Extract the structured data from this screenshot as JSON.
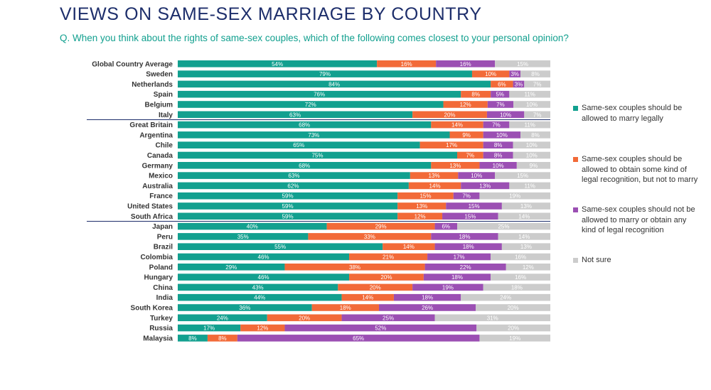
{
  "title": "VIEWS ON SAME-SEX MARRIAGE BY COUNTRY",
  "question": "Q. When you think about the rights of same-sex couples, which of the following comes closest to your personal opinion?",
  "colors": {
    "marry": "#12a08f",
    "recognition": "#f26a38",
    "no_recognition": "#9b4fb3",
    "not_sure": "#cccccc",
    "divider": "#1d2e6b"
  },
  "legend": [
    {
      "label": "Same-sex couples should be allowed to marry legally",
      "color": "#12a08f"
    },
    {
      "label": "Same-sex couples should be allowed to obtain some kind of legal recognition, but not to marry",
      "color": "#f26a38"
    },
    {
      "label": "Same-sex couples should not be allowed to marry or obtain any kind of legal recognition",
      "color": "#9b4fb3"
    },
    {
      "label": "Not sure",
      "color": "#cccccc"
    }
  ],
  "chart_data": {
    "type": "bar",
    "orientation": "horizontal",
    "stacked": true,
    "unit": "%",
    "xlim": [
      0,
      100
    ],
    "categories": [
      "Global Country Average",
      "Sweden",
      "Netherlands",
      "Spain",
      "Belgium",
      "Italy",
      "Great Britain",
      "Argentina",
      "Chile",
      "Canada",
      "Germany",
      "Mexico",
      "Australia",
      "France",
      "United States",
      "South Africa",
      "Japan",
      "Peru",
      "Brazil",
      "Colombia",
      "Poland",
      "Hungary",
      "China",
      "India",
      "South Korea",
      "Turkey",
      "Russia",
      "Malaysia"
    ],
    "group_breaks_after": [
      "Italy",
      "South Africa"
    ],
    "series": [
      {
        "name": "Same-sex couples should be allowed to marry legally",
        "values": [
          54,
          79,
          84,
          76,
          72,
          63,
          68,
          73,
          65,
          75,
          68,
          63,
          62,
          59,
          59,
          59,
          40,
          35,
          55,
          46,
          29,
          46,
          43,
          44,
          36,
          24,
          17,
          8
        ]
      },
      {
        "name": "Same-sex couples should be allowed to obtain some kind of legal recognition, but not to marry",
        "values": [
          16,
          10,
          6,
          8,
          12,
          20,
          14,
          9,
          17,
          7,
          13,
          13,
          14,
          15,
          13,
          12,
          29,
          33,
          14,
          21,
          38,
          20,
          20,
          14,
          18,
          20,
          12,
          8
        ]
      },
      {
        "name": "Same-sex couples should not be allowed to marry or obtain any kind of legal recognition",
        "values": [
          16,
          3,
          3,
          5,
          7,
          10,
          7,
          10,
          8,
          8,
          10,
          10,
          13,
          7,
          15,
          15,
          6,
          18,
          18,
          17,
          22,
          18,
          19,
          18,
          26,
          25,
          52,
          65
        ]
      },
      {
        "name": "Not sure",
        "values": [
          15,
          8,
          7,
          11,
          10,
          7,
          11,
          8,
          10,
          10,
          9,
          15,
          11,
          19,
          13,
          14,
          25,
          14,
          13,
          16,
          12,
          16,
          18,
          24,
          20,
          31,
          20,
          19
        ]
      }
    ]
  }
}
